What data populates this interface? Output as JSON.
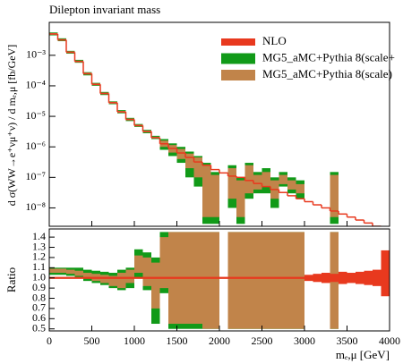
{
  "chart_data": {
    "type": "histogram",
    "title": "Dilepton invariant mass",
    "x_label": "mₑ,μ [GeV]",
    "y_label": "d σ(WW→e⁺νμ⁺ν) / d mₑ,μ [fb/GeV]",
    "ratio_label": "Ratio",
    "bins": [
      0,
      100,
      200,
      300,
      400,
      500,
      600,
      700,
      800,
      900,
      1000,
      1100,
      1200,
      1300,
      1400,
      1500,
      1600,
      1700,
      1800,
      1900,
      2000,
      2100,
      2200,
      2300,
      2400,
      2500,
      2600,
      2700,
      2800,
      2900,
      3000,
      3100,
      3200,
      3300,
      3400,
      3500,
      3600,
      3700,
      3800,
      3900,
      4000
    ],
    "xlim": [
      0,
      4000
    ],
    "xticks": [
      0,
      500,
      1000,
      1500,
      2000,
      2500,
      3000,
      3500,
      4000
    ],
    "ylog": true,
    "ylim": [
      2.5e-09,
      0.012
    ],
    "yticks": [
      {
        "value": 1e-08,
        "label": "10⁻⁸"
      },
      {
        "value": 1e-07,
        "label": "10⁻⁷"
      },
      {
        "value": 1e-06,
        "label": "10⁻⁶"
      },
      {
        "value": 1e-05,
        "label": "10⁻⁵"
      },
      {
        "value": 0.0001,
        "label": "10⁻⁴"
      },
      {
        "value": 0.001,
        "label": "10⁻³"
      }
    ],
    "ratio_ylim": [
      0.48,
      1.48
    ],
    "ratio_yticks": [
      0.5,
      0.6,
      0.7,
      0.8,
      0.9,
      {
        "value": 1,
        "label": "1.0"
      },
      1.1,
      1.2,
      1.3,
      1.4
    ],
    "legend": "upper right",
    "series": [
      {
        "name": "NLO",
        "color": "#e8391e",
        "values": [
          0.005,
          0.0032,
          0.00126,
          0.00063,
          0.00025,
          0.000112,
          5.6e-05,
          2.8e-05,
          1.4e-05,
          7.9e-06,
          5e-06,
          3.2e-06,
          2e-06,
          1.26e-06,
          8.9e-07,
          6.3e-07,
          4.5e-07,
          3.2e-07,
          2.5e-07,
          1.8e-07,
          1.4e-07,
          1.1e-07,
          1e-07,
          7.9e-08,
          6.3e-08,
          5e-08,
          4e-08,
          3.2e-08,
          2.5e-08,
          2e-08,
          1.6e-08,
          1.26e-08,
          1e-08,
          7.9e-09,
          6.3e-09,
          5e-09,
          4e-09,
          3.2e-09,
          2.5e-09,
          2e-09
        ],
        "ratio_low": [
          0.99,
          0.99,
          0.99,
          0.99,
          0.99,
          0.99,
          0.99,
          0.99,
          0.99,
          0.99,
          0.99,
          0.99,
          0.99,
          0.99,
          0.99,
          0.99,
          0.99,
          0.99,
          0.99,
          0.99,
          0.99,
          0.99,
          0.99,
          0.99,
          0.99,
          0.99,
          0.99,
          0.99,
          0.99,
          0.99,
          0.97,
          0.96,
          0.95,
          0.96,
          0.94,
          0.95,
          0.94,
          0.93,
          0.92,
          0.82
        ],
        "ratio_high": [
          1.01,
          1.01,
          1.01,
          1.01,
          1.01,
          1.01,
          1.01,
          1.01,
          1.01,
          1.01,
          1.01,
          1.01,
          1.01,
          1.01,
          1.01,
          1.01,
          1.01,
          1.01,
          1.01,
          1.01,
          1.01,
          1.01,
          1.01,
          1.01,
          1.01,
          1.01,
          1.01,
          1.01,
          1.01,
          1.01,
          1.03,
          1.04,
          1.05,
          1.04,
          1.06,
          1.05,
          1.06,
          1.07,
          1.08,
          1.27
        ]
      },
      {
        "name": "MG5_aMC+Pythia 8(scale+",
        "color": "#119a18",
        "low": [
          0.0045,
          0.0029,
          0.00113,
          0.00057,
          0.00022,
          0.0001,
          5e-05,
          2.5e-05,
          1.25e-05,
          7e-06,
          4.5e-06,
          2.8e-06,
          1.8e-06,
          8e-07,
          5e-07,
          3e-07,
          1e-07,
          5e-08,
          3e-09,
          3e-09,
          null,
          1e-08,
          3e-09,
          2e-08,
          3e-08,
          3e-08,
          1e-08,
          5e-08,
          3e-08,
          2e-08,
          null,
          null,
          null,
          3e-09,
          null,
          null,
          null,
          null,
          null,
          null
        ],
        "high": [
          0.0056,
          0.0036,
          0.0014,
          0.00071,
          0.00028,
          0.000125,
          6.3e-05,
          3.1e-05,
          1.6e-05,
          8.9e-06,
          5.6e-06,
          3.6e-06,
          2.3e-06,
          1.8e-06,
          1.3e-06,
          1e-06,
          7e-07,
          5e-07,
          3e-07,
          1.5e-07,
          null,
          2.5e-07,
          1e-07,
          3e-07,
          1.5e-07,
          2e-07,
          1e-07,
          1.5e-07,
          1e-07,
          8e-08,
          null,
          null,
          null,
          1.5e-07,
          null,
          null,
          null,
          null,
          null,
          null
        ],
        "ratio_low": [
          1.03,
          1.03,
          1.02,
          1.0,
          0.97,
          0.95,
          0.93,
          0.9,
          0.88,
          0.9,
          1.0,
          0.88,
          0.55,
          0.85,
          0.5,
          0.5,
          0.5,
          0.5,
          0.5,
          0.5,
          null,
          0.5,
          0.5,
          0.5,
          0.5,
          0.5,
          0.5,
          0.5,
          0.5,
          0.5,
          null,
          null,
          null,
          0.5,
          null,
          null,
          null,
          null,
          null,
          null
        ],
        "ratio_high": [
          1.1,
          1.1,
          1.1,
          1.1,
          1.08,
          1.07,
          1.06,
          1.05,
          1.08,
          1.1,
          1.28,
          1.25,
          1.2,
          1.45,
          1.45,
          1.45,
          1.45,
          1.45,
          1.45,
          1.45,
          null,
          1.45,
          1.45,
          1.45,
          1.45,
          1.45,
          1.45,
          1.45,
          1.45,
          1.45,
          null,
          null,
          null,
          1.45,
          null,
          null,
          null,
          null,
          null,
          null
        ]
      },
      {
        "name": "MG5_aMC+Pythia 8(scale)",
        "color": "#c1844a",
        "low": [
          0.0047,
          0.003,
          0.00118,
          0.00059,
          0.000235,
          0.000105,
          5.3e-05,
          2.6e-05,
          1.3e-05,
          7.4e-06,
          4.7e-06,
          3e-06,
          1.9e-06,
          1e-06,
          6.5e-07,
          4e-07,
          2e-07,
          1e-07,
          5e-09,
          5e-09,
          null,
          2e-08,
          5e-09,
          3e-08,
          4e-08,
          5e-08,
          2e-08,
          6e-08,
          4e-08,
          3e-08,
          null,
          null,
          null,
          5e-09,
          null,
          null,
          null,
          null,
          null,
          null
        ],
        "high": [
          0.00535,
          0.0034,
          0.00135,
          0.00067,
          0.00027,
          0.00012,
          6e-05,
          3e-05,
          1.5e-05,
          8.5e-06,
          5.35e-06,
          3.4e-06,
          2.15e-06,
          1.6e-06,
          1.15e-06,
          8.5e-07,
          6e-07,
          4.5e-07,
          2.5e-07,
          1.2e-07,
          null,
          2e-07,
          8e-08,
          2.5e-07,
          1.2e-07,
          1.5e-07,
          8e-08,
          1.2e-07,
          8e-08,
          6e-08,
          null,
          null,
          null,
          1.2e-07,
          null,
          null,
          null,
          null,
          null,
          null
        ],
        "ratio_low": [
          1.05,
          1.05,
          1.04,
          1.02,
          1.0,
          0.97,
          0.95,
          0.92,
          0.9,
          0.95,
          1.05,
          0.92,
          0.7,
          0.9,
          0.55,
          0.55,
          0.55,
          0.55,
          0.5,
          0.5,
          null,
          0.5,
          0.5,
          0.5,
          0.5,
          0.5,
          0.5,
          0.5,
          0.5,
          0.5,
          null,
          null,
          null,
          0.5,
          null,
          null,
          null,
          null,
          null,
          null
        ],
        "ratio_high": [
          1.09,
          1.09,
          1.08,
          1.07,
          1.05,
          1.04,
          1.03,
          1.02,
          1.05,
          1.08,
          1.22,
          1.2,
          1.15,
          1.4,
          1.45,
          1.45,
          1.45,
          1.45,
          1.45,
          1.45,
          null,
          1.45,
          1.45,
          1.45,
          1.45,
          1.45,
          1.45,
          1.45,
          1.45,
          1.45,
          null,
          null,
          null,
          1.45,
          null,
          null,
          null,
          null,
          null,
          null
        ]
      }
    ]
  }
}
